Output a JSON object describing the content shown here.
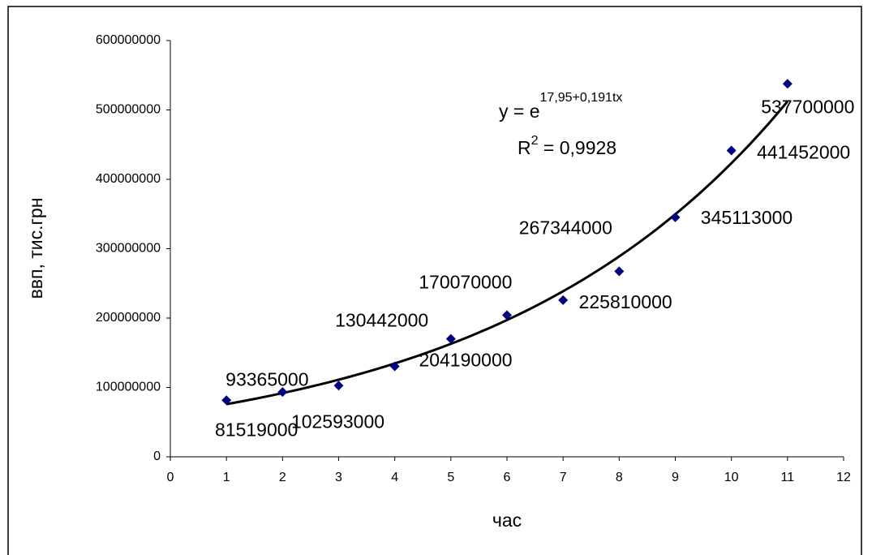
{
  "chart_data": {
    "type": "scatter",
    "x_label": "час",
    "y_label": "ввп, тис.грн",
    "x": [
      1,
      2,
      3,
      4,
      5,
      6,
      7,
      8,
      9,
      10,
      11
    ],
    "series": [
      {
        "name": "ввп",
        "color": "#000080",
        "values": [
          81519000,
          93365000,
          102593000,
          130442000,
          170070000,
          204190000,
          225810000,
          267344000,
          345113000,
          441452000,
          537700000
        ]
      }
    ],
    "xlim": [
      0,
      12
    ],
    "xticks": [
      0,
      1,
      2,
      3,
      4,
      5,
      6,
      7,
      8,
      9,
      10,
      11,
      12
    ],
    "ylim": [
      0,
      600000000
    ],
    "yticks": [
      0,
      100000000,
      200000000,
      300000000,
      400000000,
      500000000,
      600000000
    ],
    "trendline": {
      "type": "exponential",
      "color": "#000000",
      "equation_base": "y = e",
      "equation_exponent": "17,95+0,191tx",
      "r2_base": "R",
      "r2_exponent": "2",
      "r2_text": " = 0,9928"
    }
  }
}
